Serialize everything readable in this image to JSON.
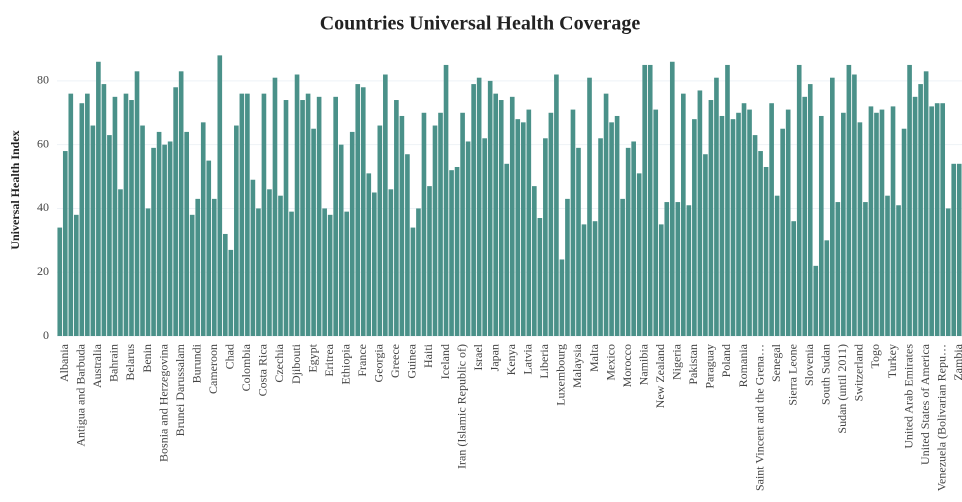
{
  "chart_data": {
    "type": "bar",
    "title": "Countries Universal Health Coverage",
    "y_label": "Universal Health Index",
    "categories": [
      null,
      "Albania",
      null,
      null,
      "Antigua and Barbuda",
      null,
      null,
      "Australia",
      null,
      null,
      "Bahrain",
      null,
      null,
      "Belarus",
      null,
      null,
      "Benin",
      null,
      null,
      "Bosnia and Herzegovina",
      null,
      null,
      "Brunei Darussalam",
      null,
      null,
      "Burundi",
      null,
      null,
      "Cameroon",
      null,
      null,
      "Chad",
      null,
      null,
      "Colombia",
      null,
      null,
      "Costa Rica",
      null,
      null,
      "Czechia",
      null,
      null,
      "Djibouti",
      null,
      null,
      "Egypt",
      null,
      null,
      "Eritrea",
      null,
      null,
      "Ethiopia",
      null,
      null,
      "France",
      null,
      null,
      "Georgia",
      null,
      null,
      "Greece",
      null,
      null,
      "Guinea",
      null,
      null,
      "Haiti",
      null,
      null,
      "Iceland",
      null,
      null,
      "Iran (Islamic Republic of)",
      null,
      null,
      "Israel",
      null,
      null,
      "Japan",
      null,
      null,
      "Kenya",
      null,
      null,
      "Latvia",
      null,
      null,
      "Liberia",
      null,
      null,
      "Luxembourg",
      null,
      null,
      "Malaysia",
      null,
      null,
      "Malta",
      null,
      null,
      "Mexico",
      null,
      null,
      "Morocco",
      null,
      null,
      "Namibia",
      null,
      null,
      "New Zealand",
      null,
      null,
      "Nigeria",
      null,
      null,
      "Pakistan",
      null,
      null,
      "Paraguay",
      null,
      null,
      "Poland",
      null,
      null,
      "Romania",
      null,
      null,
      "Saint Vincent and the Grena…",
      null,
      null,
      "Senegal",
      null,
      null,
      "Sierra Leone",
      null,
      null,
      "Slovenia",
      null,
      null,
      "South Sudan",
      null,
      null,
      "Sudan (until 2011)",
      null,
      null,
      "Switzerland",
      null,
      null,
      "Togo",
      null,
      null,
      "Turkey",
      null,
      null,
      "United Arab Emirates",
      null,
      null,
      "United States of America",
      null,
      null,
      "Venezuela (Bolivarian Repu…",
      null,
      null,
      "Zambia"
    ],
    "values": [
      34,
      58,
      76,
      38,
      73,
      76,
      66,
      86,
      79,
      63,
      75,
      46,
      76,
      74,
      83,
      66,
      40,
      59,
      64,
      60,
      61,
      78,
      83,
      64,
      38,
      43,
      67,
      55,
      43,
      88,
      32,
      27,
      66,
      76,
      76,
      49,
      40,
      76,
      46,
      81,
      44,
      74,
      39,
      82,
      74,
      76,
      65,
      75,
      40,
      38,
      75,
      60,
      39,
      64,
      79,
      78,
      51,
      45,
      66,
      82,
      46,
      74,
      69,
      57,
      34,
      40,
      70,
      47,
      66,
      70,
      85,
      52,
      53,
      70,
      61,
      79,
      81,
      62,
      80,
      76,
      74,
      54,
      75,
      68,
      67,
      71,
      47,
      37,
      62,
      70,
      82,
      24,
      43,
      71,
      59,
      35,
      81,
      36,
      62,
      76,
      67,
      69,
      43,
      59,
      61,
      51,
      85,
      85,
      71,
      35,
      42,
      86,
      42,
      76,
      41,
      68,
      77,
      57,
      74,
      81,
      69,
      85,
      68,
      70,
      73,
      71,
      63,
      58,
      53,
      73,
      44,
      65,
      71,
      36,
      85,
      75,
      79,
      22,
      69,
      30,
      81,
      42,
      70,
      85,
      82,
      67,
      42,
      72,
      70,
      71,
      44,
      72,
      41,
      65,
      85,
      75,
      79,
      83,
      72,
      73,
      73,
      40,
      54,
      54
    ],
    "color": "#4a9189",
    "ylim": [
      0,
      90
    ],
    "yticks": [
      0,
      20,
      40,
      60,
      80
    ],
    "grid": true
  }
}
